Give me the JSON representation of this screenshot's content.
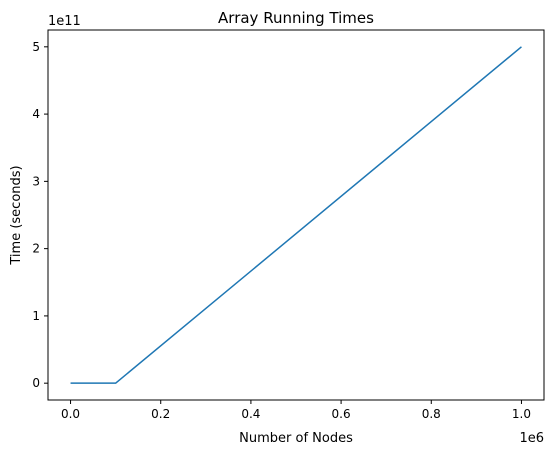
{
  "chart_data": {
    "type": "line",
    "title": "Array Running Times",
    "xlabel": "Number of Nodes",
    "ylabel": "Time (seconds)",
    "x_offset_label": "1e6",
    "y_offset_label": "1e11",
    "xlim": [
      -50000,
      1050000
    ],
    "ylim": [
      -25000000000,
      525000000000
    ],
    "x_ticks": [
      {
        "value": 0,
        "label": "0.0"
      },
      {
        "value": 200000,
        "label": "0.2"
      },
      {
        "value": 400000,
        "label": "0.4"
      },
      {
        "value": 600000,
        "label": "0.6"
      },
      {
        "value": 800000,
        "label": "0.8"
      },
      {
        "value": 1000000,
        "label": "1.0"
      }
    ],
    "y_ticks": [
      {
        "value": 0,
        "label": "0"
      },
      {
        "value": 100000000000,
        "label": "1"
      },
      {
        "value": 200000000000,
        "label": "2"
      },
      {
        "value": 300000000000,
        "label": "3"
      },
      {
        "value": 400000000000,
        "label": "4"
      },
      {
        "value": 500000000000,
        "label": "5"
      }
    ],
    "grid": false,
    "series": [
      {
        "color": "#1f77b4",
        "x": [
          0,
          100000,
          1000000
        ],
        "y": [
          0,
          0,
          500000000000
        ]
      }
    ]
  }
}
